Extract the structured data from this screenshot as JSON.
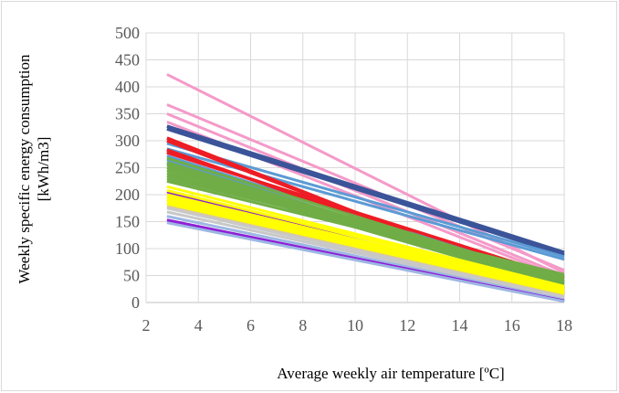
{
  "chart_data": {
    "type": "line",
    "title": "",
    "xlabel": "Average weekly air temperature [ºC]",
    "ylabel_line1": "Weekly specific energy consumption",
    "ylabel_line2": "[kWh/m3]",
    "xlim": [
      2,
      18
    ],
    "ylim": [
      0,
      500
    ],
    "xticks": [
      2,
      4,
      6,
      8,
      10,
      12,
      14,
      16,
      18
    ],
    "yticks": [
      0,
      50,
      100,
      150,
      200,
      250,
      300,
      350,
      400,
      450,
      500
    ],
    "grid": true,
    "legend": "none",
    "x_range_of_lines": [
      2.8,
      18
    ],
    "colors": {
      "pink": "#f49ac9",
      "navy": "#3b5499",
      "red": "#ee1c24",
      "blue": "#5b9bd5",
      "green": "#70ad47",
      "yellow": "#ffff00",
      "purple": "#8f1fd6",
      "lightblue": "#9db7e3",
      "gray": "#c8c8c8",
      "tan": "#d9c8a0"
    },
    "series": [
      {
        "color": "pink",
        "values": [
          423,
          55
        ]
      },
      {
        "color": "pink",
        "values": [
          367,
          60
        ]
      },
      {
        "color": "pink",
        "values": [
          350,
          50
        ]
      },
      {
        "color": "pink",
        "values": [
          335,
          45
        ]
      },
      {
        "color": "navy",
        "values": [
          327,
          93
        ]
      },
      {
        "color": "navy",
        "values": [
          322,
          88
        ]
      },
      {
        "color": "blue",
        "values": [
          295,
          85
        ]
      },
      {
        "color": "blue",
        "values": [
          285,
          80
        ]
      },
      {
        "color": "blue",
        "values": [
          280,
          40
        ]
      },
      {
        "color": "blue",
        "values": [
          272,
          36
        ]
      },
      {
        "color": "blue",
        "values": [
          265,
          30
        ]
      },
      {
        "color": "blue",
        "values": [
          258,
          28
        ]
      },
      {
        "color": "red",
        "values": [
          305,
          15
        ]
      },
      {
        "color": "red",
        "values": [
          300,
          20
        ]
      },
      {
        "color": "red",
        "values": [
          283,
          25
        ]
      },
      {
        "color": "red",
        "values": [
          278,
          45
        ]
      },
      {
        "color": "green",
        "values": [
          268,
          40
        ]
      },
      {
        "color": "green",
        "values": [
          260,
          38
        ]
      },
      {
        "color": "green",
        "values": [
          255,
          35
        ]
      },
      {
        "color": "green",
        "values": [
          250,
          33
        ]
      },
      {
        "color": "green",
        "values": [
          245,
          30
        ]
      },
      {
        "color": "green",
        "values": [
          240,
          28
        ]
      },
      {
        "color": "green",
        "values": [
          235,
          48
        ]
      },
      {
        "color": "green",
        "values": [
          230,
          52
        ]
      },
      {
        "color": "green",
        "values": [
          225,
          45
        ]
      },
      {
        "color": "purple",
        "values": [
          205,
          20
        ]
      },
      {
        "color": "yellow",
        "values": [
          215,
          30
        ]
      },
      {
        "color": "yellow",
        "values": [
          208,
          28
        ]
      },
      {
        "color": "yellow",
        "values": [
          200,
          25
        ]
      },
      {
        "color": "yellow",
        "values": [
          195,
          22
        ]
      },
      {
        "color": "yellow",
        "values": [
          190,
          20
        ]
      },
      {
        "color": "yellow",
        "values": [
          185,
          18
        ]
      },
      {
        "color": "yellow",
        "values": [
          180,
          15
        ]
      },
      {
        "color": "tan",
        "values": [
          178,
          12
        ]
      },
      {
        "color": "gray",
        "values": [
          175,
          10
        ]
      },
      {
        "color": "gray",
        "values": [
          168,
          8
        ]
      },
      {
        "color": "lightblue",
        "values": [
          160,
          5
        ]
      },
      {
        "color": "purple",
        "values": [
          153,
          3
        ]
      },
      {
        "color": "lightblue",
        "values": [
          148,
          2
        ]
      }
    ]
  }
}
